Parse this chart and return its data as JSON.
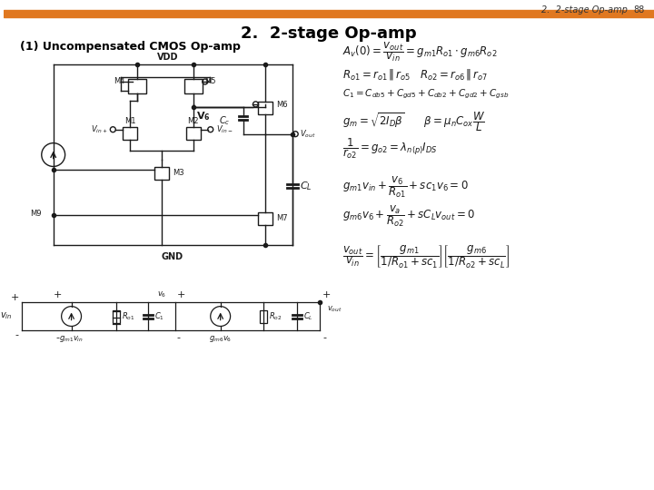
{
  "title": "2.  2-stage Op-amp",
  "subtitle": "(1) Uncompensated CMOS Op-amp",
  "header_text": "2.  2-stage Op-amp",
  "page_num": "88",
  "bg_color": "#ffffff",
  "orange_bar_color": "#E07820",
  "text_color": "#000000",
  "circuit_color": "#1a1a1a"
}
